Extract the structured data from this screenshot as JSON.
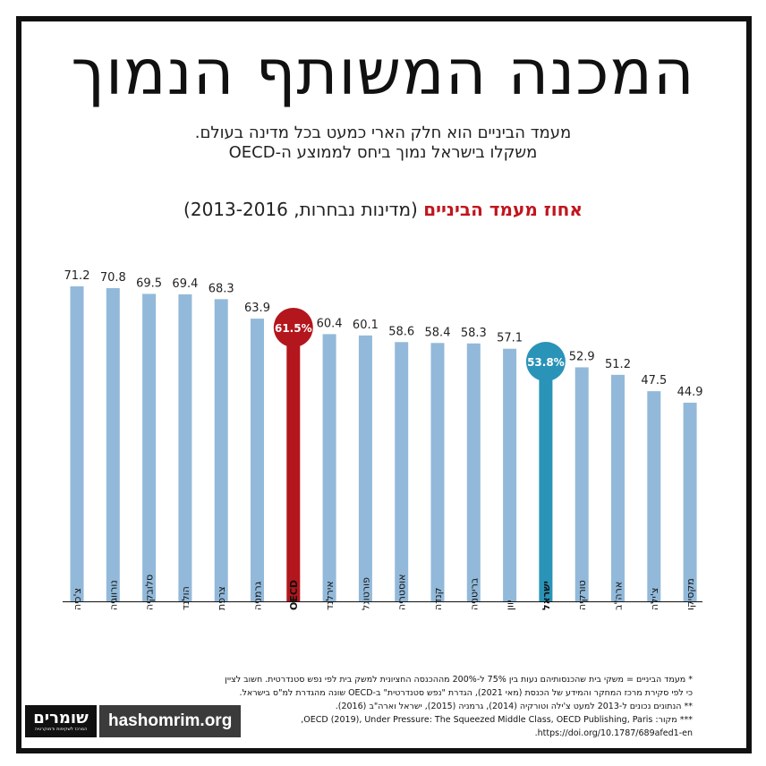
{
  "title": "המכנה המשותף הנמוך",
  "subtitle_line1": "מעמד הביניים הוא חלק הארי כמעט בכל מדינה בעולם.",
  "subtitle_line2": "משקלו בישראל נמוך ביחס לממוצע ה-OECD",
  "chart_title_main": "אחוז מעמד הביניים",
  "chart_title_paren": "(מדינות נבחרות, 2013-2016)",
  "colors": {
    "bar": "#92b9d9",
    "oecd": "#b3161c",
    "israel": "#2a93b8",
    "title_accent": "#c0161e"
  },
  "chart_data": {
    "type": "bar",
    "title": "אחוז מעמד הביניים",
    "subtitle": "(מדינות נבחרות, 2013-2016)",
    "categories": [
      "צ'כיה",
      "נורווגיה",
      "סלובקיה",
      "הולנד",
      "צרפת",
      "גרמניה",
      "OECD",
      "אירלנד",
      "פורטוגל",
      "אוסטריה",
      "קנדה",
      "בריטניה",
      "יוון",
      "ישראל",
      "טורקיה",
      "ארה\"ב",
      "צ'ילה",
      "מקסיקו"
    ],
    "values": [
      71.2,
      70.8,
      69.5,
      69.4,
      68.3,
      63.9,
      61.5,
      60.4,
      60.1,
      58.6,
      58.4,
      58.3,
      57.1,
      53.8,
      52.9,
      51.2,
      47.5,
      44.9
    ],
    "value_labels": [
      "71.2",
      "70.8",
      "69.5",
      "69.4",
      "68.3",
      "63.9",
      "61.5%",
      "60.4",
      "60.1",
      "58.6",
      "58.4",
      "58.3",
      "57.1",
      "53.8%",
      "52.9",
      "51.2",
      "47.5",
      "44.9"
    ],
    "highlight": {
      "OECD": "oecd",
      "ישראל": "israel"
    },
    "ylim": [
      0,
      80
    ],
    "grid": false
  },
  "footnotes": [
    "* מעמד הביניים = משקי בית שהכנסותיהם נעות בין 75% ל-200% מההכנסה החציונית למשק בית לפי נפש סטנדרטית. חשוב לציין",
    "כי לפי סקירת מרכז המחקר והמידע של הכנסת (מאי 2021), הגדרת \"נפש סטנדרטית\" ב-OECD שונה מהגדרת למ\"ס בישראל.",
    "** הנתונים נכונים ל-2013 למעט צ'ילה וטורקיה (2014), גרמניה (2015), ישראל וארה\"ב (2016).",
    "*** מקור: OECD (2019), Under Pressure: The Squeezed Middle Class, OECD Publishing, Paris,",
    "https://doi.org/10.1787/689afed1-en."
  ],
  "logo": {
    "mark": "שומרים",
    "tagline": "המרכז לשקיפות ודמוקרטיה",
    "url": "hashomrim.org"
  }
}
